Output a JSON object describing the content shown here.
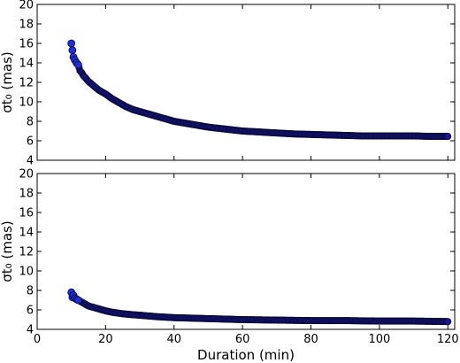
{
  "chart_data": [
    {
      "type": "scatter",
      "panel": "top",
      "title": "",
      "xlabel": "",
      "ylabel": "σt₀ (mas)",
      "xlim": [
        0,
        122
      ],
      "ylim": [
        4,
        20
      ],
      "xticks": [
        0,
        20,
        40,
        60,
        80,
        100,
        120
      ],
      "xtick_labels_shown": false,
      "yticks": [
        4,
        6,
        8,
        10,
        12,
        14,
        16,
        18,
        20
      ],
      "ytick_labels": [
        "4",
        "6",
        "8",
        "10",
        "12",
        "14",
        "16",
        "18",
        "20"
      ],
      "marker_color": "#1a1a8c",
      "marker_edge": "#0a0a40",
      "series": [
        {
          "x": [
            10.0,
            10.3,
            10.6,
            11,
            11.5,
            12,
            12.5,
            13,
            13.5,
            14,
            15,
            16,
            17,
            18,
            19,
            20,
            22,
            24,
            26,
            28,
            30,
            33,
            36,
            40,
            45,
            50,
            55,
            60,
            65,
            70,
            75,
            80,
            85,
            90,
            95,
            100,
            105,
            110,
            115,
            120
          ],
          "y": [
            16.0,
            15.3,
            14.6,
            14.3,
            14.0,
            13.8,
            13.2,
            13.0,
            12.7,
            12.5,
            12.1,
            11.8,
            11.5,
            11.2,
            11.0,
            10.8,
            10.3,
            9.9,
            9.5,
            9.2,
            9.0,
            8.7,
            8.4,
            8.0,
            7.7,
            7.4,
            7.2,
            7.0,
            6.9,
            6.8,
            6.7,
            6.65,
            6.6,
            6.55,
            6.5,
            6.5,
            6.5,
            6.5,
            6.45,
            6.45
          ]
        }
      ]
    },
    {
      "type": "scatter",
      "panel": "bottom",
      "title": "",
      "xlabel": "Duration (min)",
      "ylabel": "σt₀ (mas)",
      "xlim": [
        0,
        122
      ],
      "ylim": [
        4,
        20
      ],
      "xticks": [
        0,
        20,
        40,
        60,
        80,
        100,
        120
      ],
      "xtick_labels": [
        "0",
        "20",
        "40",
        "60",
        "80",
        "100",
        "120"
      ],
      "yticks": [
        4,
        6,
        8,
        10,
        12,
        14,
        16,
        18,
        20
      ],
      "ytick_labels": [
        "4",
        "6",
        "8",
        "10",
        "12",
        "14",
        "16",
        "18",
        "20"
      ],
      "marker_color": "#1a1a8c",
      "marker_edge": "#0a0a40",
      "series": [
        {
          "x": [
            10.0,
            10.3,
            10.6,
            11,
            11.5,
            12,
            13,
            14,
            15,
            16,
            17,
            18,
            20,
            22,
            25,
            28,
            30,
            35,
            40,
            45,
            50,
            55,
            60,
            70,
            80,
            90,
            100,
            110,
            120
          ],
          "y": [
            7.8,
            7.3,
            7.5,
            7.2,
            7.1,
            7.0,
            6.8,
            6.6,
            6.4,
            6.3,
            6.2,
            6.1,
            5.9,
            5.75,
            5.6,
            5.5,
            5.45,
            5.3,
            5.2,
            5.15,
            5.1,
            5.05,
            5.0,
            4.95,
            4.9,
            4.9,
            4.85,
            4.85,
            4.8
          ]
        }
      ]
    }
  ]
}
